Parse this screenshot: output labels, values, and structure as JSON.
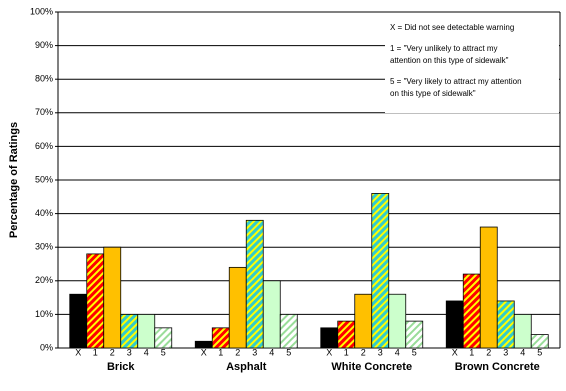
{
  "chart_data": {
    "type": "bar",
    "y_label": "Percentage of Ratings",
    "categories": [
      "Brick",
      "Asphalt",
      "White Concrete",
      "Brown Concrete"
    ],
    "series": [
      {
        "name": "X",
        "color": "#000000",
        "values": [
          16,
          2,
          6,
          14
        ]
      },
      {
        "name": "1",
        "color": "#ff0000",
        "hatch_color": "#ffff00",
        "values": [
          28,
          6,
          8,
          22
        ]
      },
      {
        "name": "2",
        "color": "#ffc000",
        "values": [
          30,
          24,
          16,
          36
        ]
      },
      {
        "name": "3",
        "color": "#33cccc",
        "hatch_color": "#ffff00",
        "values": [
          10,
          38,
          46,
          14
        ]
      },
      {
        "name": "4",
        "color": "#ccffcc",
        "values": [
          10,
          20,
          16,
          10
        ]
      },
      {
        "name": "5",
        "color": "#ffffff",
        "hatch_color": "#99dd99",
        "values": [
          6,
          10,
          8,
          4
        ]
      }
    ],
    "ylim": [
      0,
      100
    ],
    "yticks": [
      {
        "value": 0,
        "label": "0%"
      },
      {
        "value": 10,
        "label": "10%"
      },
      {
        "value": 20,
        "label": "20%"
      },
      {
        "value": 30,
        "label": "30%"
      },
      {
        "value": 40,
        "label": "40%"
      },
      {
        "value": 50,
        "label": "50%"
      },
      {
        "value": 60,
        "label": "60%"
      },
      {
        "value": 70,
        "label": "70%"
      },
      {
        "value": 80,
        "label": "80%"
      },
      {
        "value": 90,
        "label": "90%"
      },
      {
        "value": 100,
        "label": "100%"
      }
    ],
    "grid": true,
    "annotations": [
      [
        "X = Did not see detectable warning"
      ],
      [
        "1 = \"Very unlikely to attract my",
        "attention on this type of sidewalk\""
      ],
      [
        "5 = \"Very likely to attract my attention",
        "on this type of sidewalk\""
      ]
    ]
  }
}
